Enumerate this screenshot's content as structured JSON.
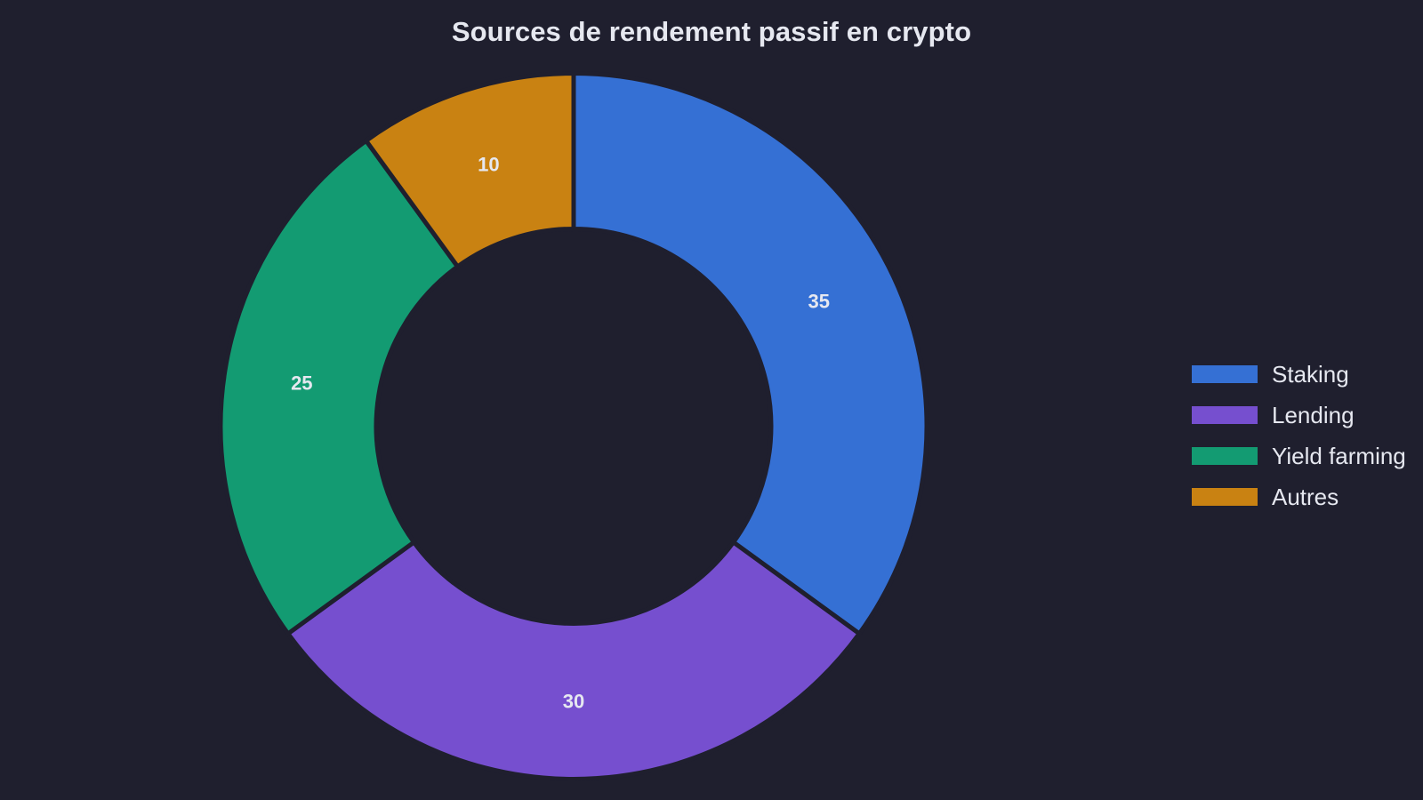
{
  "title": "Sources de rendement passif en crypto",
  "background_color": "#1f1f2e",
  "separator_color": "#1f1f2e",
  "text_color": "#e6e8f0",
  "legend": {
    "items": [
      {
        "label": "Staking",
        "color": "#3570d4"
      },
      {
        "label": "Lending",
        "color": "#764fcf"
      },
      {
        "label": "Yield farming",
        "color": "#139b72"
      },
      {
        "label": "Autres",
        "color": "#c98212"
      }
    ]
  },
  "chart_data": {
    "type": "pie",
    "variant": "donut",
    "title": "Sources de rendement passif en crypto",
    "categories": [
      "Staking",
      "Lending",
      "Yield farming",
      "Autres"
    ],
    "values": [
      35,
      30,
      25,
      10
    ],
    "colors": [
      "#3570d4",
      "#764fcf",
      "#139b72",
      "#c98212"
    ],
    "data_labels": [
      "35",
      "30",
      "25",
      "10"
    ],
    "start_angle": "12 o'clock",
    "direction": "clockwise",
    "hole_ratio": 0.56,
    "legend_position": "right"
  }
}
